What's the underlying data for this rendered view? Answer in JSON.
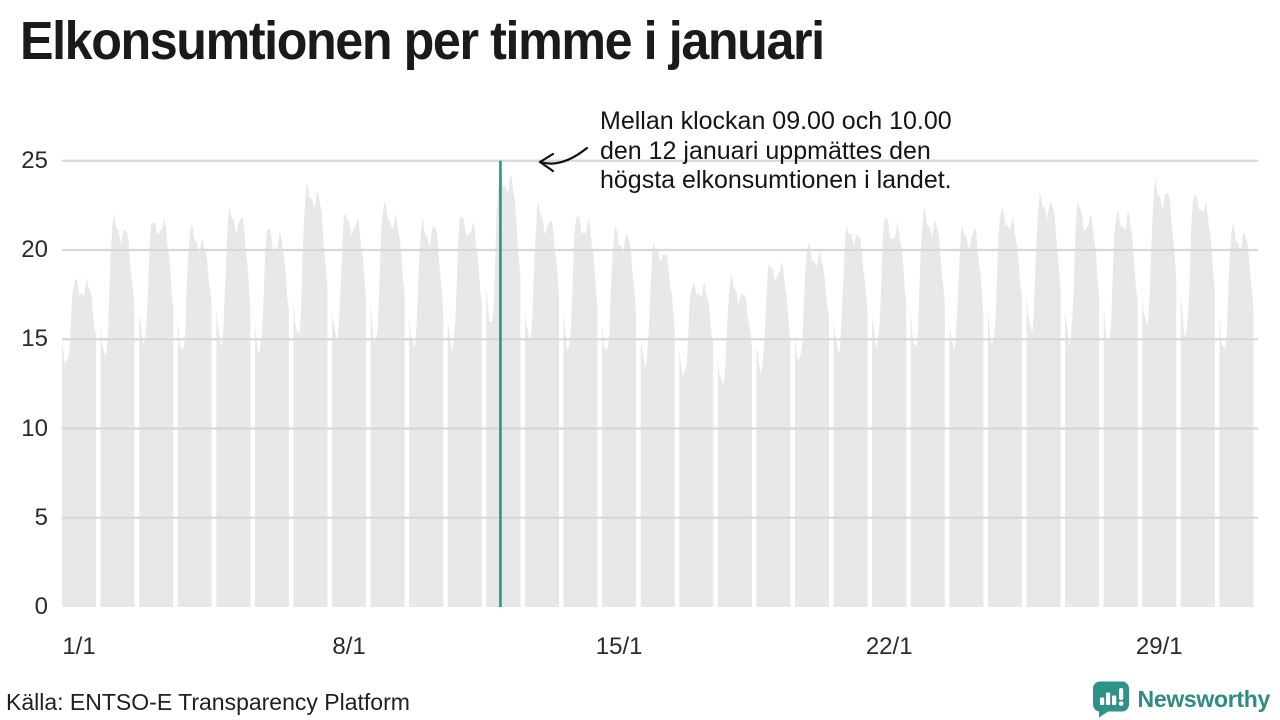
{
  "header": {
    "title": "Elkonsumtionen per timme i januari"
  },
  "annotation": {
    "lines": [
      "Mellan klockan 09.00 och 10.00",
      "den 12 januari uppmättes den",
      "högsta elkonsumtionen i landet."
    ]
  },
  "footer": {
    "source": "Källa: ENTSO-E Transparency Platform",
    "brand": "Newsworthy"
  },
  "colors": {
    "area_fill": "#e8e8e8",
    "gridline": "#d8d8d8",
    "highlight_line": "#1e9a8c",
    "brand_teal": "#2f9287",
    "text": "#1a1a1a"
  },
  "chart_data": {
    "type": "area",
    "title": "Elkonsumtionen per timme i januari",
    "x_unit": "hour",
    "days": 31,
    "hours_per_day": 24,
    "x_range": [
      "1/1 00:00",
      "31/1 23:00"
    ],
    "ylim": [
      0,
      25
    ],
    "yticks": [
      0,
      5,
      10,
      15,
      20,
      25
    ],
    "xticks": [
      {
        "label": "1/1",
        "day": 1
      },
      {
        "label": "8/1",
        "day": 8
      },
      {
        "label": "15/1",
        "day": 15
      },
      {
        "label": "22/1",
        "day": 22
      },
      {
        "label": "29/1",
        "day": 29
      }
    ],
    "grid": "horizontal-only",
    "legend": "none",
    "daily_peaks": [
      18.4,
      21.8,
      22.0,
      21.2,
      22.3,
      21.3,
      23.7,
      22.2,
      22.5,
      21.7,
      22.0,
      24.6,
      22.4,
      22.0,
      21.3,
      20.4,
      18.3,
      18.2,
      19.4,
      20.3,
      21.4,
      21.9,
      22.1,
      21.5,
      22.3,
      23.2,
      22.5,
      22.3,
      23.9,
      23.2,
      21.4
    ],
    "daily_mins": [
      13.6,
      14.2,
      14.6,
      14.4,
      14.8,
      14.3,
      15.2,
      14.9,
      15.0,
      14.5,
      14.6,
      15.6,
      15.0,
      14.6,
      14.2,
      13.6,
      12.8,
      12.7,
      13.2,
      13.8,
      14.3,
      14.6,
      14.7,
      14.4,
      14.8,
      15.3,
      15.0,
      14.8,
      15.7,
      15.3,
      14.3
    ],
    "hour_profile_0_to_1": [
      0.24,
      0.12,
      0.04,
      0.0,
      0.03,
      0.16,
      0.46,
      0.76,
      0.93,
      1.0,
      0.97,
      0.92,
      0.88,
      0.85,
      0.83,
      0.86,
      0.91,
      0.94,
      0.89,
      0.81,
      0.7,
      0.58,
      0.44,
      0.32
    ],
    "max_point": {
      "day": 12,
      "hour_window": "09.00–10.00",
      "value": 24.6
    },
    "highlight_line": {
      "day": 12,
      "hour": 9.5,
      "color": "#1e9a8c"
    }
  }
}
